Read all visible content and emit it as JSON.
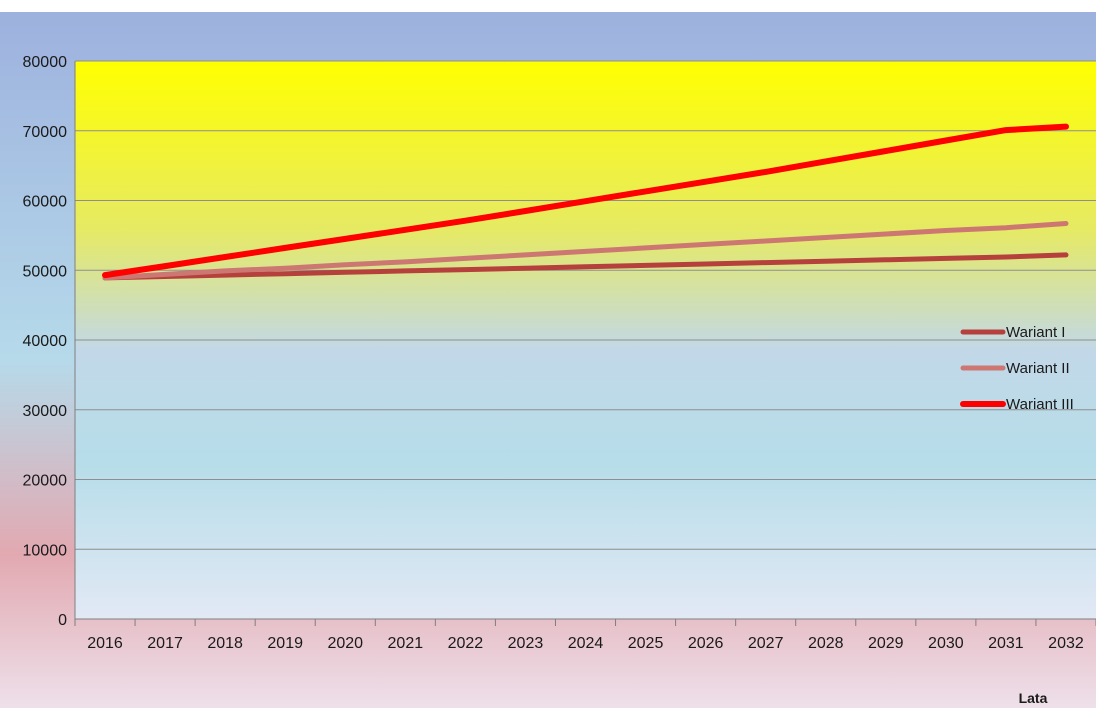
{
  "chart_data": {
    "type": "line",
    "title": "",
    "xlabel": "Lata",
    "ylabel": "",
    "x": [
      "2016",
      "2017",
      "2018",
      "2019",
      "2020",
      "2021",
      "2022",
      "2023",
      "2024",
      "2025",
      "2026",
      "2027",
      "2028",
      "2029",
      "2030",
      "2031",
      "2032"
    ],
    "y_ticks": [
      "0",
      "10000",
      "20000",
      "30000",
      "40000",
      "50000",
      "60000",
      "70000",
      "80000"
    ],
    "ylim": [
      0,
      80000
    ],
    "grid": true,
    "legend_position": "right",
    "series": [
      {
        "name": "Wariant I",
        "color": "#b5403c",
        "values": [
          48900,
          49100,
          49300,
          49500,
          49700,
          49900,
          50100,
          50300,
          50500,
          50700,
          50900,
          51100,
          51300,
          51500,
          51700,
          51900,
          52200
        ]
      },
      {
        "name": "Wariant II",
        "color": "#cd7772",
        "values": [
          48900,
          49400,
          49900,
          50300,
          50800,
          51200,
          51700,
          52200,
          52700,
          53200,
          53700,
          54200,
          54700,
          55200,
          55700,
          56100,
          56700
        ]
      },
      {
        "name": "Wariant III",
        "color": "#ff0000",
        "values": [
          49300,
          50600,
          51900,
          53200,
          54500,
          55800,
          57100,
          58500,
          59900,
          61300,
          62700,
          64100,
          65600,
          67100,
          68600,
          70100,
          70600
        ]
      }
    ]
  },
  "colors": {
    "outer_top": "#9db1de",
    "outer_mid": "#b6daea",
    "outer_bottom": "#e6c2cb",
    "plot_top": "#ffff00",
    "plot_mid": "#b6dde9",
    "plot_bottom": "#e2e9f5",
    "gridline": "#8e8e8e"
  }
}
